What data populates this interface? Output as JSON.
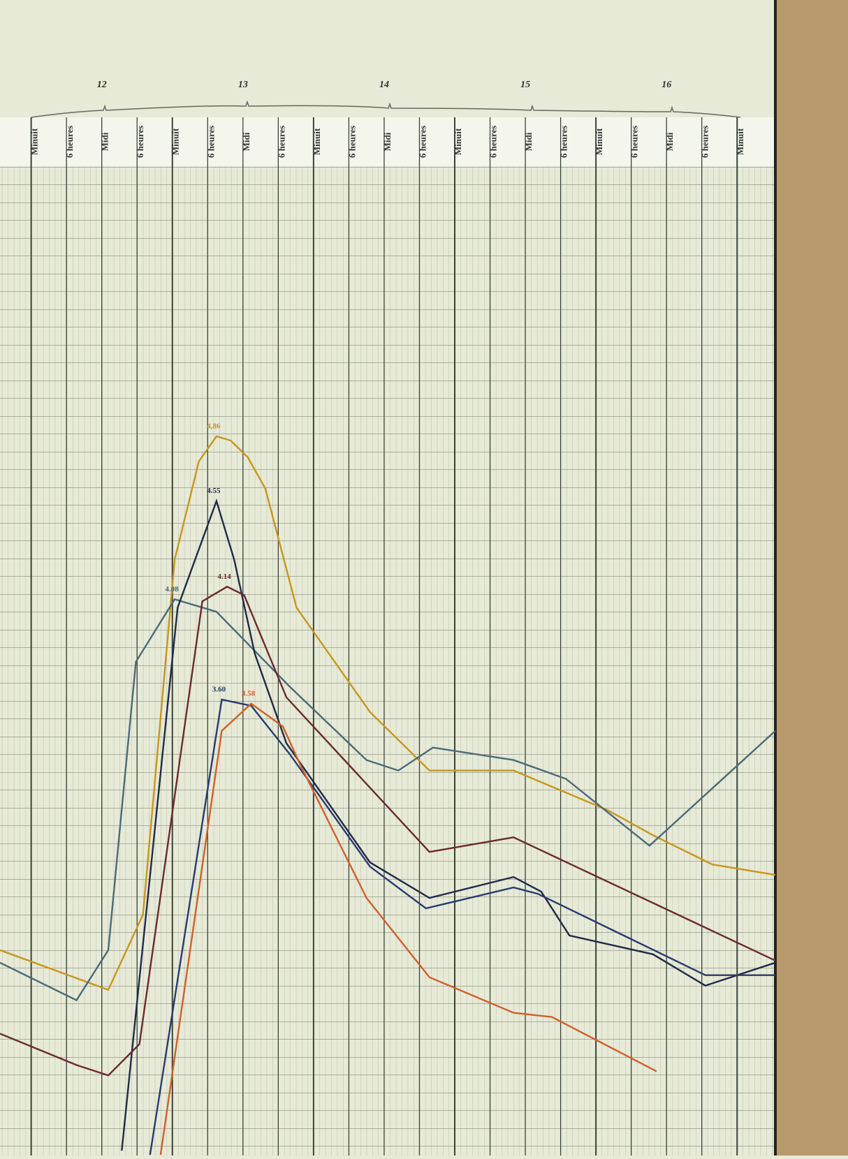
{
  "chart_data": {
    "type": "line",
    "xlim": [
      -5.3,
      126.5
    ],
    "ylim": [
      1.4,
      6.15
    ],
    "grid": true,
    "xticks": [
      {
        "value": 0,
        "label": "Minuit"
      },
      {
        "value": 6,
        "label": "6 heures"
      },
      {
        "value": 12,
        "label": "Midi"
      },
      {
        "value": 18,
        "label": "6 heures"
      },
      {
        "value": 24,
        "label": "Minuit"
      },
      {
        "value": 30,
        "label": "6 heures"
      },
      {
        "value": 36,
        "label": "Midi"
      },
      {
        "value": 42,
        "label": "6 heures"
      },
      {
        "value": 48,
        "label": "Minuit"
      },
      {
        "value": 54,
        "label": "6 heures"
      },
      {
        "value": 60,
        "label": "Midi"
      },
      {
        "value": 66,
        "label": "6 heures"
      },
      {
        "value": 72,
        "label": "Minuit"
      },
      {
        "value": 78,
        "label": "6 heures"
      },
      {
        "value": 84,
        "label": "Midi"
      },
      {
        "value": 90,
        "label": "6 heures"
      },
      {
        "value": 96,
        "label": "Minuit"
      },
      {
        "value": 102,
        "label": "6 heures"
      },
      {
        "value": 108,
        "label": "Midi"
      },
      {
        "value": 114,
        "label": "6 heures"
      },
      {
        "value": 120,
        "label": "Minuit"
      }
    ],
    "day_ticks": [
      {
        "value": 12,
        "label": "12"
      },
      {
        "value": 36,
        "label": "13"
      },
      {
        "value": 60,
        "label": "14"
      },
      {
        "value": 84,
        "label": "15"
      },
      {
        "value": 108,
        "label": "16"
      }
    ],
    "series": [
      {
        "color": "#c8961a",
        "x": [
          -5.3,
          13.1,
          19.0,
          24.4,
          28.5,
          31.5,
          33.9,
          36.8,
          39.8,
          45.1,
          57.6,
          67.7,
          82.0,
          98.0,
          105.7,
          115.8,
          126.5
        ],
        "values": [
          2.4,
          2.21,
          2.57,
          4.27,
          4.74,
          4.86,
          4.84,
          4.76,
          4.61,
          4.04,
          3.54,
          3.26,
          3.26,
          3.07,
          2.95,
          2.81,
          2.76
        ],
        "value_labels": [
          null,
          null,
          null,
          null,
          null,
          "4,86",
          null,
          null,
          null,
          null,
          null,
          null,
          null,
          null,
          null,
          null,
          null
        ]
      },
      {
        "color": "#4a6a78",
        "x": [
          -5.3,
          7.7,
          13.1,
          17.8,
          24.4,
          31.5,
          44.0,
          57.0,
          62.4,
          68.3,
          82.0,
          90.9,
          105.1,
          126.5
        ],
        "values": [
          2.34,
          2.16,
          2.4,
          3.78,
          4.08,
          4.02,
          3.66,
          3.31,
          3.26,
          3.37,
          3.31,
          3.22,
          2.9,
          3.45
        ],
        "value_labels": [
          null,
          null,
          null,
          null,
          "4.08",
          null,
          null,
          null,
          null,
          null,
          null,
          null,
          null,
          null
        ]
      },
      {
        "color": "#202a48",
        "x": [
          15.4,
          24.9,
          31.5,
          34.5,
          38.0,
          43.4,
          57.6,
          67.7,
          82.0,
          86.7,
          91.5,
          105.7,
          114.6,
          126.5
        ],
        "values": [
          1.44,
          4.04,
          4.55,
          4.27,
          3.82,
          3.39,
          2.82,
          2.65,
          2.75,
          2.68,
          2.47,
          2.38,
          2.23,
          2.34
        ],
        "value_labels": [
          null,
          null,
          "4.55",
          null,
          null,
          null,
          null,
          null,
          null,
          null,
          null,
          null,
          null,
          null
        ]
      },
      {
        "color": "#6a2a30",
        "x": [
          -5.3,
          7.7,
          13.1,
          18.4,
          29.1,
          33.3,
          36.2,
          43.4,
          67.7,
          82.0,
          126.5
        ],
        "values": [
          2.0,
          1.85,
          1.8,
          1.95,
          4.07,
          4.14,
          4.1,
          3.61,
          2.87,
          2.94,
          2.35
        ],
        "value_labels": [
          null,
          null,
          null,
          null,
          null,
          "4.14",
          null,
          null,
          null,
          null,
          null
        ]
      },
      {
        "color": "#2a3a70",
        "x": [
          20.2,
          32.4,
          37.4,
          43.9,
          57.6,
          67.1,
          82.0,
          86.1,
          114.6,
          126.5
        ],
        "values": [
          1.42,
          3.6,
          3.57,
          3.34,
          2.8,
          2.6,
          2.7,
          2.67,
          2.28,
          2.28
        ],
        "value_labels": [
          null,
          "3.60",
          null,
          null,
          null,
          null,
          null,
          null,
          null,
          null
        ]
      },
      {
        "color": "#d0602a",
        "x": [
          22.0,
          32.4,
          37.4,
          42.8,
          45.7,
          57.0,
          67.7,
          82.0,
          88.5,
          106.3
        ],
        "values": [
          1.42,
          3.45,
          3.58,
          3.47,
          3.29,
          2.65,
          2.27,
          2.1,
          2.08,
          1.82
        ],
        "value_labels": [
          null,
          null,
          "3.58",
          null,
          null,
          null,
          null,
          null,
          null,
          null
        ]
      }
    ]
  }
}
